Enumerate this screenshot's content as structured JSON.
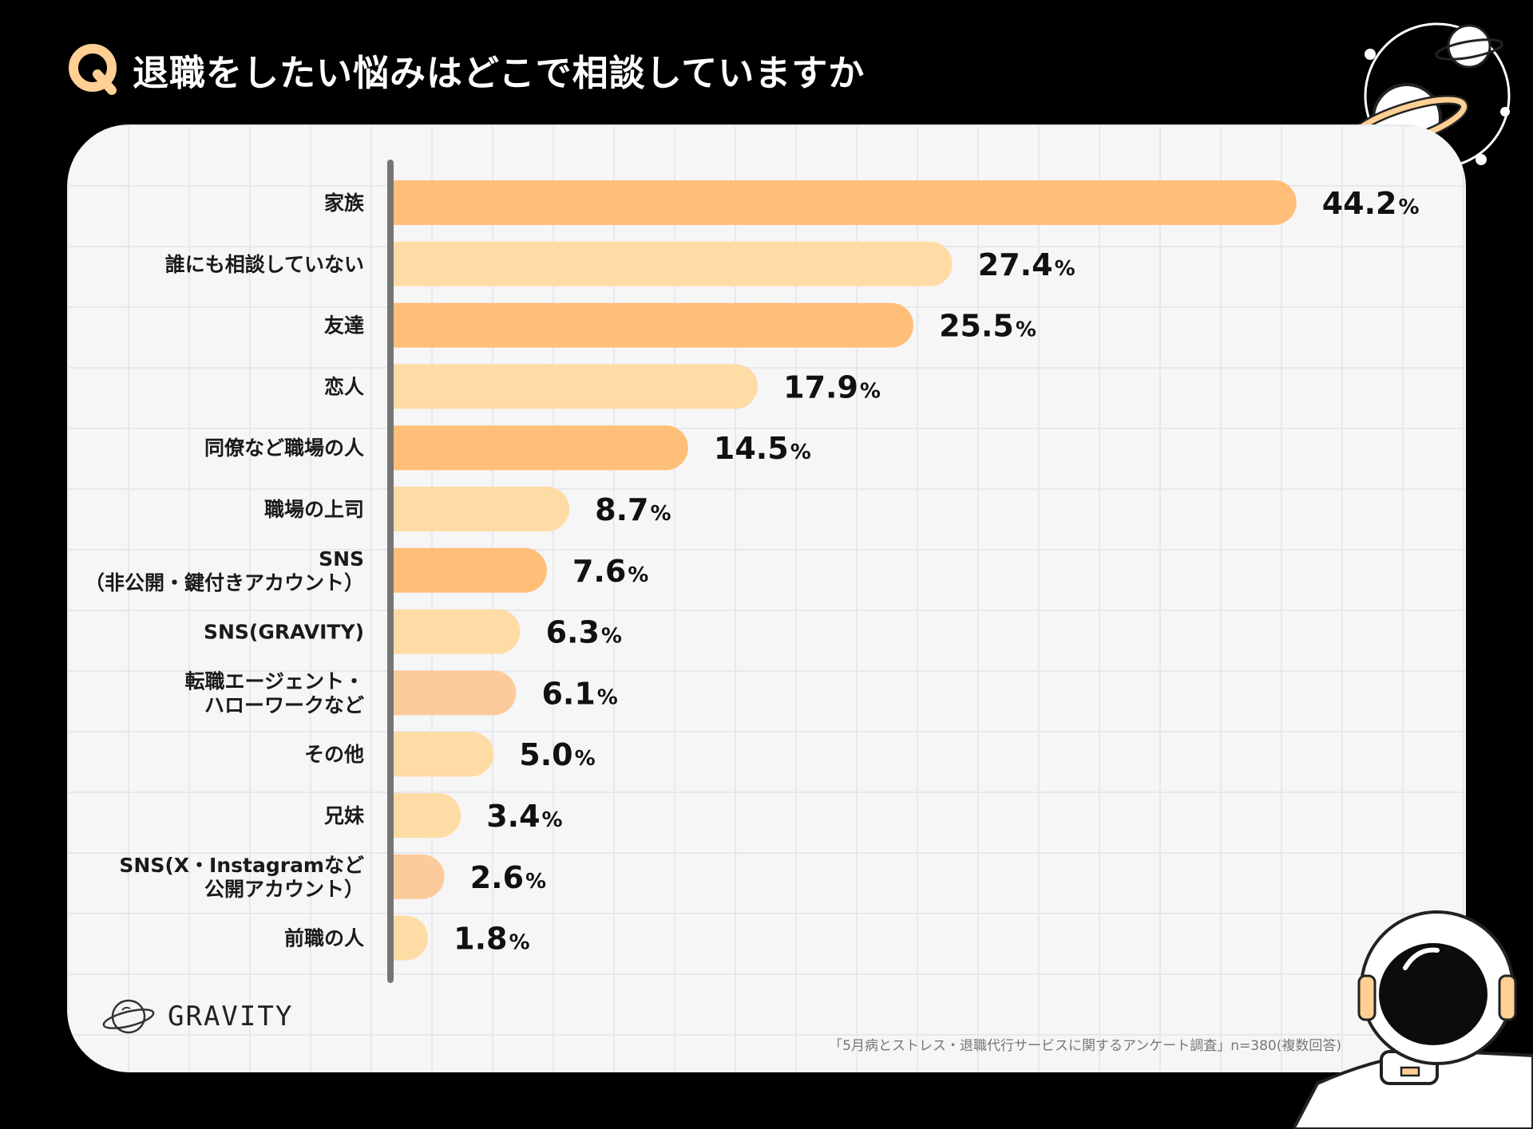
{
  "header": {
    "question_mark": "Q",
    "title": "退職をしたい悩みはどこで相談していますか"
  },
  "brand": {
    "logo_text": "GRAVITY"
  },
  "footnote": "「5月病とストレス・退職代行サービスに関するアンケート調査」n=380(複数回答)",
  "colors": {
    "accent": "#ffbf79",
    "bar_dark": "#ffbf79",
    "bar_light": "#ffdba6",
    "bar_muted": "#fccb9c",
    "background": "#000000",
    "card": "#f6f6f6",
    "axis": "#757575"
  },
  "chart_data": {
    "type": "bar",
    "orientation": "horizontal",
    "title": "退職をしたい悩みはどこで相談していますか",
    "xlabel": "",
    "ylabel": "",
    "xlim": [
      0,
      50
    ],
    "unit": "%",
    "grid": true,
    "categories": [
      [
        "家族"
      ],
      [
        "誰にも相談していない"
      ],
      [
        "友達"
      ],
      [
        "恋人"
      ],
      [
        "同僚など職場の人"
      ],
      [
        "職場の上司"
      ],
      [
        "SNS",
        "（非公開・鍵付きアカウント）"
      ],
      [
        "SNS(GRAVITY)"
      ],
      [
        "転職エージェント・",
        "ハローワークなど"
      ],
      [
        "その他"
      ],
      [
        "兄妹"
      ],
      [
        "SNS(X・Instagramなど",
        "公開アカウント）"
      ],
      [
        "前職の人"
      ]
    ],
    "values": [
      44.2,
      27.4,
      25.5,
      17.9,
      14.5,
      8.7,
      7.6,
      6.3,
      6.1,
      5.0,
      3.4,
      2.6,
      1.8
    ],
    "labels": [
      "44.2",
      "27.4",
      "25.5",
      "17.9",
      "14.5",
      "8.7",
      "7.6",
      "6.3",
      "6.1",
      "5.0",
      "3.4",
      "2.6",
      "1.8"
    ],
    "bar_colors": [
      "#ffbf79",
      "#ffdba6",
      "#ffbf79",
      "#ffdba6",
      "#ffbf79",
      "#ffdba6",
      "#ffbf79",
      "#ffdba6",
      "#fccb9c",
      "#ffdba6",
      "#ffdba6",
      "#fccb9c",
      "#ffdba6"
    ]
  }
}
